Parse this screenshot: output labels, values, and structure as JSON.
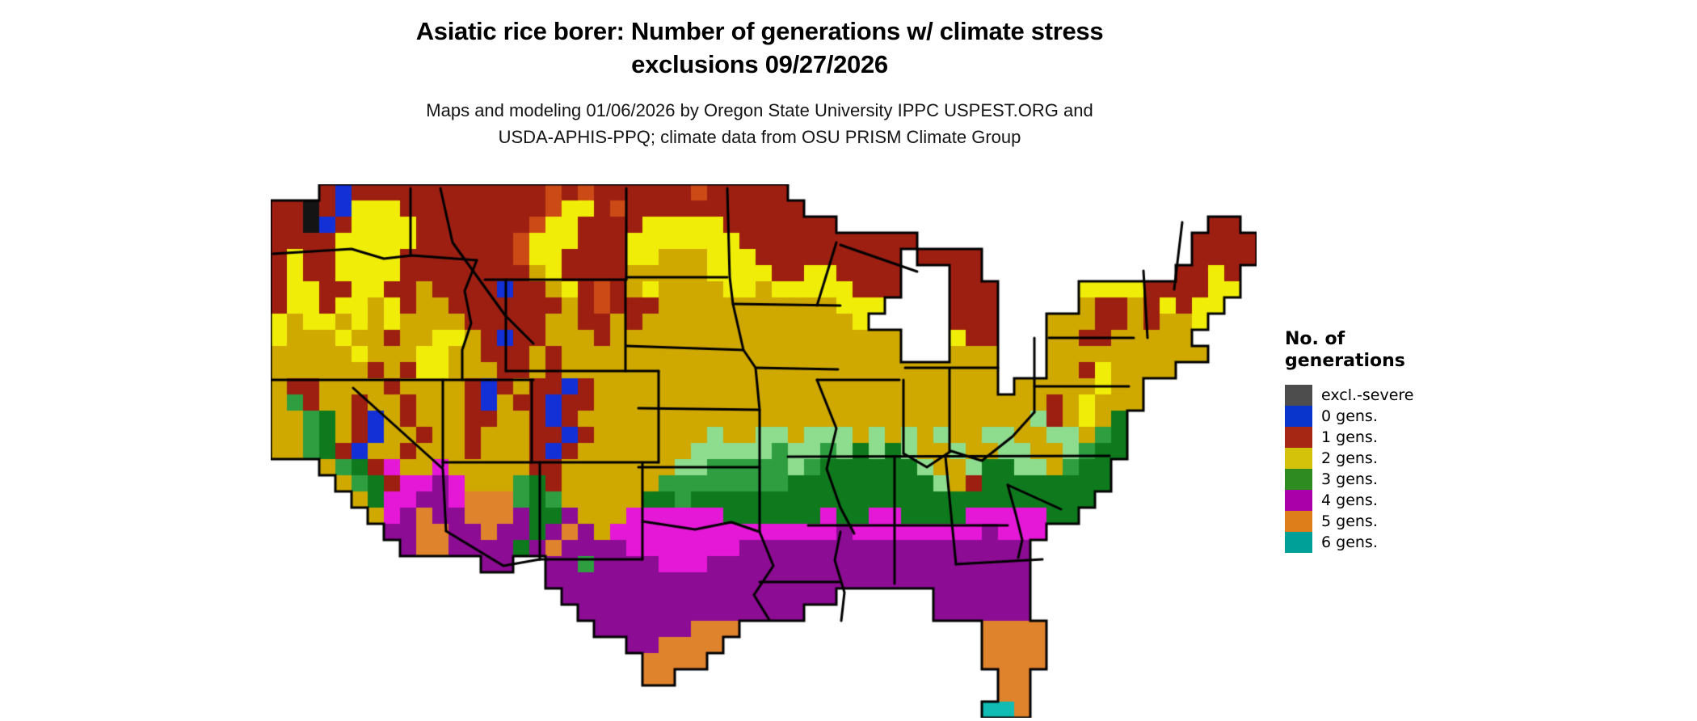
{
  "title": {
    "line1": "Asiatic rice borer: Number of generations w/ climate stress",
    "line2": "exclusions 09/27/2026"
  },
  "subtitle": {
    "line1": "Maps and modeling 01/06/2026 by Oregon State University IPPC USPEST.ORG and",
    "line2": "USDA-APHIS-PPQ; climate data from OSU PRISM Climate Group"
  },
  "legend": {
    "title_line1": "No. of",
    "title_line2": "generations",
    "items": [
      {
        "label": "excl.-severe",
        "color": "#4d4d4d"
      },
      {
        "label": "0 gens.",
        "color": "#0a35cc"
      },
      {
        "label": "1 gens.",
        "color": "#a62814"
      },
      {
        "label": "2 gens.",
        "color": "#d4c20a"
      },
      {
        "label": "3 gens.",
        "color": "#2e8b22"
      },
      {
        "label": "4 gens.",
        "color": "#aa00aa"
      },
      {
        "label": "5 gens.",
        "color": "#dd7e1a"
      },
      {
        "label": "6 gens.",
        "color": "#00a099"
      }
    ]
  },
  "map": {
    "cell_size": 20,
    "cols": 61,
    "rows": 33,
    "border_color": "#000000",
    "palette": {
      "K": "#141414",
      "b": "#1330d6",
      "r": "#9c1f12",
      "R": "#cc4a15",
      "y": "#f0ee08",
      "Y": "#cfa800",
      "e": "#8edc8e",
      "E": "#2f9e41",
      "g": "#0f7a1d",
      "m": "#e418d6",
      "M": "#8c0c94",
      "O": "#e0832d",
      "t": "#10bcb4",
      "G": "#555555"
    },
    "grid": [
      [
        "...rbrrrrr",
        "rrrrrrrRrR",
        "rrrrrrRrrr",
        "rr........",
        "..........",
        "..........."
      ],
      [
        "rrKrbyyyrr",
        "rrrrrrrRyy",
        "rRrrrrrrrr",
        "rrr.......",
        "..........",
        "..........."
      ],
      [
        "rrKbryyyyr",
        "rrrrrrRyyr",
        "rrryyyyyrr",
        "rrrrr.....",
        "..........",
        "........rr."
      ],
      [
        "rrrryyyyyr",
        "rrrrrRyyyr",
        "rryyyyyyyr",
        "rrrrrrrrrr",
        "..........",
        ".......rrrr"
      ],
      [
        "ryrryyyyrr",
        "rrrrrRyyrr",
        "rryyYYYyyy",
        "rrrrrrrrr.",
        "rrrr......",
        ".......rrrr"
      ],
      [
        "ryrryyyyrr",
        "rrrrrrYyrr",
        "rrYYYYYyyy",
        "yrryyrrrr.",
        "..rr......",
        "......rryr."
      ],
      [
        "ryyrryyrrY",
        "rrrrbrrYyr",
        "RrYyYYYYyy",
        "Yyyyyyrrr.",
        "..rrr.....",
        "yyyyrrrryy."
      ],
      [
        "ryyryyYyrY",
        "YrrrrrrrYr",
        "RrrrYYYYYY",
        "YYYYYyyy..",
        "..rrr.....",
        "YrrYryryy.."
      ],
      [
        "yYyyYyYyYY",
        "YYrrrrrYYr",
        "rYrYYYYYYY",
        "YYYYYYy...",
        "..rrr...YY",
        "YrrYrYYy..."
      ],
      [
        "yYYYyYYrYY",
        "yyYrbrrYYY",
        "rYYYYYYYYY",
        "YYYYYYYYY.",
        "..yrr...YY",
        "rrYYYYY...."
      ],
      [
        "YYYYYyYYYy",
        "yYYrrrYrYY",
        "YYYYYYYYYY",
        "YYYYYYYYY.",
        "..YYY...YY",
        "YYYYYYYY..."
      ],
      [
        "YYYYYYrYry",
        "yYYYrrYrYY",
        "YYYYYYYYYY",
        "YYYYYYYYYY",
        "YYYYY...YY",
        "ryYYYY....."
      ],
      [
        "YrrYYYYrYY",
        "YYrbrYrrbr",
        "YYYYYYYYYY",
        "YYYYYYYYYY",
        "YYYYY.YYYY",
        "YyYY......."
      ],
      [
        "YErYYrYYrY",
        "YYrbYrrbrr",
        "YYYYYYYYYY",
        "YYYYYYYYYY",
        "YYYYYYYYrY",
        "yYYY......."
      ],
      [
        "YYEgYrbYrY",
        "YYrrYYrbrY",
        "YYYYYYYYYY",
        "YYYYYYYYYY",
        "YYYYYYYerY",
        "yYg........"
      ],
      [
        "YYEgYrbYYr",
        "YYrYYYrrbr",
        "YYYYYYYeYY",
        "eeYeeeYeYe",
        "YeYYeeYYee",
        "YEg........"
      ],
      [
        "YYEgrbYYrY",
        "YYrYYYrbrY",
        "YYYYYYeeee",
        "eEeeEegege",
        "YYeYYeeYYe",
        "Egg........"
      ],
      [
        "...YEgrmYY",
        "mYYYYYrrYY",
        "YYYYYeeEEE",
        "EEeEgggggg",
        "eYYeggeeYE",
        "gg........."
      ],
      [
        "....YEgrmm",
        "MmYYYEgrYY",
        "YYYYEEEEEE",
        "EEgggggggg",
        "geYrgggggg",
        "gg........."
      ],
      [
        ".....YgmmM",
        "MmOOOEgEYY",
        "YYYggEgggg",
        "gggggggggg",
        "gggggggggg",
        "g.........."
      ],
      [
        "......YmMO",
        "MMOOOMggMY",
        "YYmmmmmmgg",
        "ggggmggmmg",
        "gggmmmmmgg",
        "..........."
      ],
      [
        ".......MMO",
        "OMMOMMgMOM",
        "Ymmmmmmmmm",
        "mmmmmMmmmm",
        "mmmmMmmm..",
        "..........."
      ],
      [
        "........MO",
        "OMMMMgMOMM",
        "MMmmmmmmmM",
        "MMMMMMMMMM",
        "MMMMMMM...",
        "..........."
      ],
      [
        "..........",
        "...MM..MME",
        "MMMMmmmMMM",
        "MMMMMMMMMM",
        "MMMMMMM...",
        "..........."
      ],
      [
        "..........",
        ".......MMM",
        "MMMMMMMMMM",
        "MMMMMMMMMM",
        "MMMMMMM...",
        "..........."
      ],
      [
        "..........",
        "........MM",
        "MMMMMMMMMM",
        "MMMMM.....",
        ".MMMMMM...",
        "..........."
      ],
      [
        "..........",
        ".........M",
        "MMMMMMMMMM",
        "MMM.......",
        ".MMMMMM...",
        "..........."
      ],
      [
        "..........",
        "..........",
        "MMMMMMOOO.",
        "..........",
        "....OOOO..",
        "..........."
      ],
      [
        "..........",
        "..........",
        "..MMOOOO..",
        "..........",
        "....OOOO..",
        "..........."
      ],
      [
        "..........",
        "..........",
        "...OOOO...",
        "..........",
        "....OOOO..",
        "..........."
      ],
      [
        "..........",
        "..........",
        "...OO.....",
        "..........",
        ".....OO...",
        "..........."
      ],
      [
        "..........",
        "..........",
        "..........",
        "..........",
        ".....OO...",
        "..........."
      ],
      [
        "..........",
        "..........",
        "..........",
        "..........",
        "....ttO...",
        "..........."
      ]
    ],
    "state_borders": [
      [
        [
          3,
          86
        ],
        [
          100,
          80
        ],
        [
          140,
          92
        ],
        [
          175,
          88
        ],
        [
          255,
          94
        ]
      ],
      [
        [
          173,
          5
        ],
        [
          173,
          88
        ]
      ],
      [
        [
          210,
          5
        ],
        [
          225,
          72
        ],
        [
          290,
          162
        ],
        [
          325,
          197
        ]
      ],
      [
        [
          255,
          94
        ],
        [
          240,
          132
        ],
        [
          248,
          172
        ],
        [
          237,
          205
        ],
        [
          237,
          242
        ]
      ],
      [
        [
          0,
          242
        ],
        [
          325,
          242
        ]
      ],
      [
        [
          265,
          118
        ],
        [
          440,
          118
        ]
      ],
      [
        [
          291,
          118
        ],
        [
          291,
          231
        ]
      ],
      [
        [
          439,
          118
        ],
        [
          439,
          231
        ]
      ],
      [
        [
          291,
          231
        ],
        [
          480,
          231
        ]
      ],
      [
        [
          213,
          242
        ],
        [
          213,
          349
        ]
      ],
      [
        [
          102,
          252
        ],
        [
          213,
          352
        ],
        [
          217,
          429
        ]
      ],
      [
        [
          323,
          242
        ],
        [
          323,
          344
        ]
      ],
      [
        [
          213,
          344
        ],
        [
          480,
          344
        ]
      ],
      [
        [
          333,
          344
        ],
        [
          333,
          464
        ]
      ],
      [
        [
          217,
          429
        ],
        [
          288,
          472
        ],
        [
          333,
          464
        ]
      ],
      [
        [
          480,
          231
        ],
        [
          480,
          344
        ]
      ],
      [
        [
          460,
          344
        ],
        [
          460,
          464
        ]
      ],
      [
        [
          333,
          464
        ],
        [
          460,
          464
        ]
      ],
      [
        [
          440,
          5
        ],
        [
          440,
          118
        ]
      ],
      [
        [
          440,
          115
        ],
        [
          565,
          115
        ]
      ],
      [
        [
          440,
          200
        ],
        [
          585,
          205
        ]
      ],
      [
        [
          455,
          277
        ],
        [
          605,
          279
        ]
      ],
      [
        [
          455,
          350
        ],
        [
          605,
          350
        ]
      ],
      [
        [
          460,
          417
        ],
        [
          525,
          427
        ],
        [
          570,
          418
        ],
        [
          605,
          430
        ]
      ],
      [
        [
          565,
          5
        ],
        [
          568,
          115
        ],
        [
          572,
          148
        ],
        [
          585,
          205
        ],
        [
          600,
          227
        ],
        [
          605,
          279
        ],
        [
          605,
          430
        ]
      ],
      [
        [
          572,
          148
        ],
        [
          705,
          150
        ]
      ],
      [
        [
          600,
          227
        ],
        [
          702,
          229
        ]
      ],
      [
        [
          700,
          72
        ],
        [
          676,
          150
        ]
      ],
      [
        [
          676,
          242
        ],
        [
          778,
          242
        ]
      ],
      [
        [
          676,
          242
        ],
        [
          700,
          302
        ],
        [
          688,
          352
        ],
        [
          705,
          400
        ],
        [
          722,
          432
        ]
      ],
      [
        [
          783,
          242
        ],
        [
          783,
          333
        ]
      ],
      [
        [
          840,
          228
        ],
        [
          840,
          330
        ]
      ],
      [
        [
          783,
          333
        ],
        [
          812,
          350
        ],
        [
          842,
          330
        ],
        [
          880,
          342
        ],
        [
          918,
          312
        ],
        [
          945,
          282
        ]
      ],
      [
        [
          945,
          190
        ],
        [
          945,
          282
        ]
      ],
      [
        [
          963,
          190
        ],
        [
          1068,
          190
        ]
      ],
      [
        [
          945,
          250
        ],
        [
          1062,
          250
        ]
      ],
      [
        [
          640,
          337
        ],
        [
          1038,
          336
        ]
      ],
      [
        [
          665,
          422
        ],
        [
          912,
          422
        ]
      ],
      [
        [
          772,
          337
        ],
        [
          772,
          494
        ]
      ],
      [
        [
          835,
          337
        ],
        [
          848,
          470
        ]
      ],
      [
        [
          848,
          470
        ],
        [
          955,
          464
        ]
      ],
      [
        [
          605,
          430
        ],
        [
          622,
          472
        ],
        [
          598,
          508
        ],
        [
          617,
          539
        ]
      ],
      [
        [
          605,
          492
        ],
        [
          705,
          492
        ]
      ],
      [
        [
          705,
          430
        ],
        [
          698,
          465
        ],
        [
          710,
          505
        ],
        [
          706,
          540
        ]
      ],
      [
        [
          912,
          372
        ],
        [
          978,
          402
        ]
      ],
      [
        [
          912,
          372
        ],
        [
          922,
          408
        ],
        [
          930,
          440
        ],
        [
          925,
          462
        ]
      ],
      [
        [
          1080,
          107
        ],
        [
          1085,
          190
        ]
      ],
      [
        [
          1128,
          47
        ],
        [
          1118,
          130
        ]
      ],
      [
        [
          785,
          227
        ],
        [
          900,
          227
        ]
      ],
      [
        [
          705,
          75
        ],
        [
          800,
          108
        ]
      ]
    ]
  }
}
